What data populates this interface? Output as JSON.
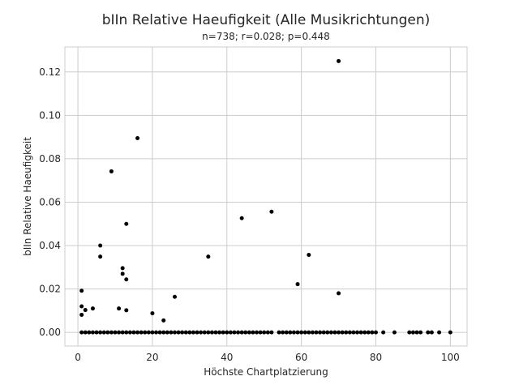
{
  "chart_data": {
    "type": "scatter",
    "title": "bIIn Relative Haeufigkeit (Alle Musikrichtungen)",
    "subtitle": "n=738; r=0.028; p=0.448",
    "xlabel": "Höchste Chartplatzierung",
    "ylabel": "bIIn Relative Haeufigkeit",
    "xlim": [
      -3.5,
      104.5
    ],
    "ylim": [
      -0.0063,
      0.1315
    ],
    "xticks": [
      0,
      20,
      40,
      60,
      80,
      100
    ],
    "yticks": [
      0.0,
      0.02,
      0.04,
      0.06,
      0.08,
      0.1,
      0.12
    ],
    "ytick_labels": [
      "0.00",
      "0.02",
      "0.04",
      "0.06",
      "0.08",
      "0.10",
      "0.12"
    ],
    "grid": true,
    "point_color": "#000000",
    "zero_x": [
      1,
      2,
      3,
      4,
      5,
      6,
      7,
      8,
      9,
      10,
      11,
      12,
      13,
      14,
      15,
      16,
      17,
      18,
      19,
      20,
      21,
      22,
      23,
      24,
      25,
      26,
      27,
      28,
      29,
      30,
      31,
      32,
      33,
      34,
      35,
      36,
      37,
      38,
      39,
      40,
      41,
      42,
      43,
      44,
      45,
      46,
      47,
      48,
      49,
      50,
      51,
      52,
      54,
      55,
      56,
      57,
      58,
      59,
      60,
      61,
      62,
      63,
      64,
      65,
      66,
      67,
      68,
      69,
      70,
      71,
      72,
      73,
      74,
      75,
      76,
      77,
      78,
      79,
      80,
      82,
      85,
      89,
      90,
      91,
      92,
      94,
      95,
      97,
      100
    ],
    "points": [
      {
        "x": 70,
        "y": 0.125
      },
      {
        "x": 16,
        "y": 0.0895
      },
      {
        "x": 9,
        "y": 0.0742
      },
      {
        "x": 52,
        "y": 0.0556
      },
      {
        "x": 44,
        "y": 0.0526
      },
      {
        "x": 13,
        "y": 0.05
      },
      {
        "x": 6,
        "y": 0.04
      },
      {
        "x": 62,
        "y": 0.0357
      },
      {
        "x": 6,
        "y": 0.0349
      },
      {
        "x": 35,
        "y": 0.0349
      },
      {
        "x": 12,
        "y": 0.0296
      },
      {
        "x": 12,
        "y": 0.027
      },
      {
        "x": 13,
        "y": 0.0244
      },
      {
        "x": 59,
        "y": 0.0222
      },
      {
        "x": 1,
        "y": 0.0192
      },
      {
        "x": 70,
        "y": 0.018
      },
      {
        "x": 26,
        "y": 0.0164
      },
      {
        "x": 1,
        "y": 0.012
      },
      {
        "x": 4,
        "y": 0.011
      },
      {
        "x": 11,
        "y": 0.011
      },
      {
        "x": 2,
        "y": 0.0103
      },
      {
        "x": 13,
        "y": 0.0102
      },
      {
        "x": 20,
        "y": 0.0088
      },
      {
        "x": 1,
        "y": 0.0081
      },
      {
        "x": 23,
        "y": 0.0055
      }
    ]
  }
}
